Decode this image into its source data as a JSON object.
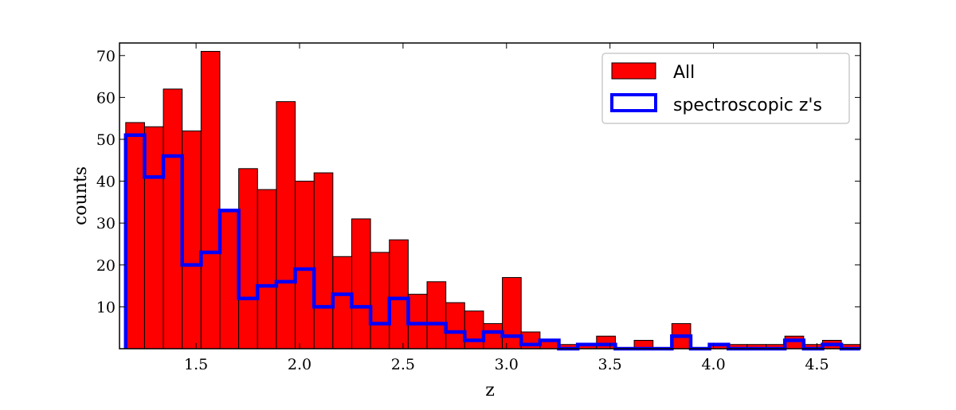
{
  "chart_data": {
    "type": "bar",
    "title": "",
    "xlabel": "z",
    "ylabel": "counts",
    "xlim": [
      1.13,
      1.7
    ],
    "ylim": [
      0,
      73
    ],
    "xticks": [
      1.5,
      2.0,
      2.5,
      3.0,
      3.5,
      4.0,
      4.5
    ],
    "xtick_labels": [
      "1.5",
      "2.0",
      "2.5",
      "3.0",
      "3.5",
      "4.0",
      "4.5"
    ],
    "yticks": [
      10,
      20,
      30,
      40,
      50,
      60,
      70
    ],
    "ytick_labels": [
      "10",
      "20",
      "30",
      "40",
      "50",
      "60",
      "70"
    ],
    "bin_edges": [
      1.16,
      1.251,
      1.342,
      1.433,
      1.524,
      1.615,
      1.706,
      1.797,
      1.888,
      1.979,
      2.07,
      2.161,
      2.252,
      2.343,
      2.434,
      2.525,
      2.616,
      2.707,
      2.798,
      2.889,
      2.98,
      3.071,
      3.162,
      3.253,
      3.344,
      3.435,
      3.526,
      3.617,
      3.708,
      3.799,
      3.89,
      3.981,
      4.072,
      4.163,
      4.254,
      4.345,
      4.436,
      4.527,
      4.618,
      4.709
    ],
    "grid": false,
    "legend_position": "top-right",
    "series": [
      {
        "name": "All",
        "style": "bar",
        "color": "#ff0000",
        "values": [
          54,
          53,
          62,
          52,
          71,
          33,
          43,
          38,
          59,
          40,
          42,
          22,
          31,
          23,
          26,
          13,
          16,
          11,
          9,
          6,
          17,
          4,
          2,
          1,
          1,
          3,
          0,
          2,
          0,
          6,
          0,
          1,
          1,
          1,
          1,
          3,
          1,
          2,
          1
        ]
      },
      {
        "name": "spectroscopic z's",
        "style": "step",
        "color": "#0000ff",
        "values": [
          51,
          41,
          46,
          20,
          23,
          33,
          12,
          15,
          16,
          19,
          10,
          13,
          10,
          6,
          12,
          6,
          6,
          4,
          2,
          4,
          3,
          1,
          2,
          0,
          1,
          1,
          0,
          0,
          0,
          3,
          0,
          1,
          0,
          0,
          0,
          2,
          0,
          1,
          0
        ]
      }
    ]
  }
}
